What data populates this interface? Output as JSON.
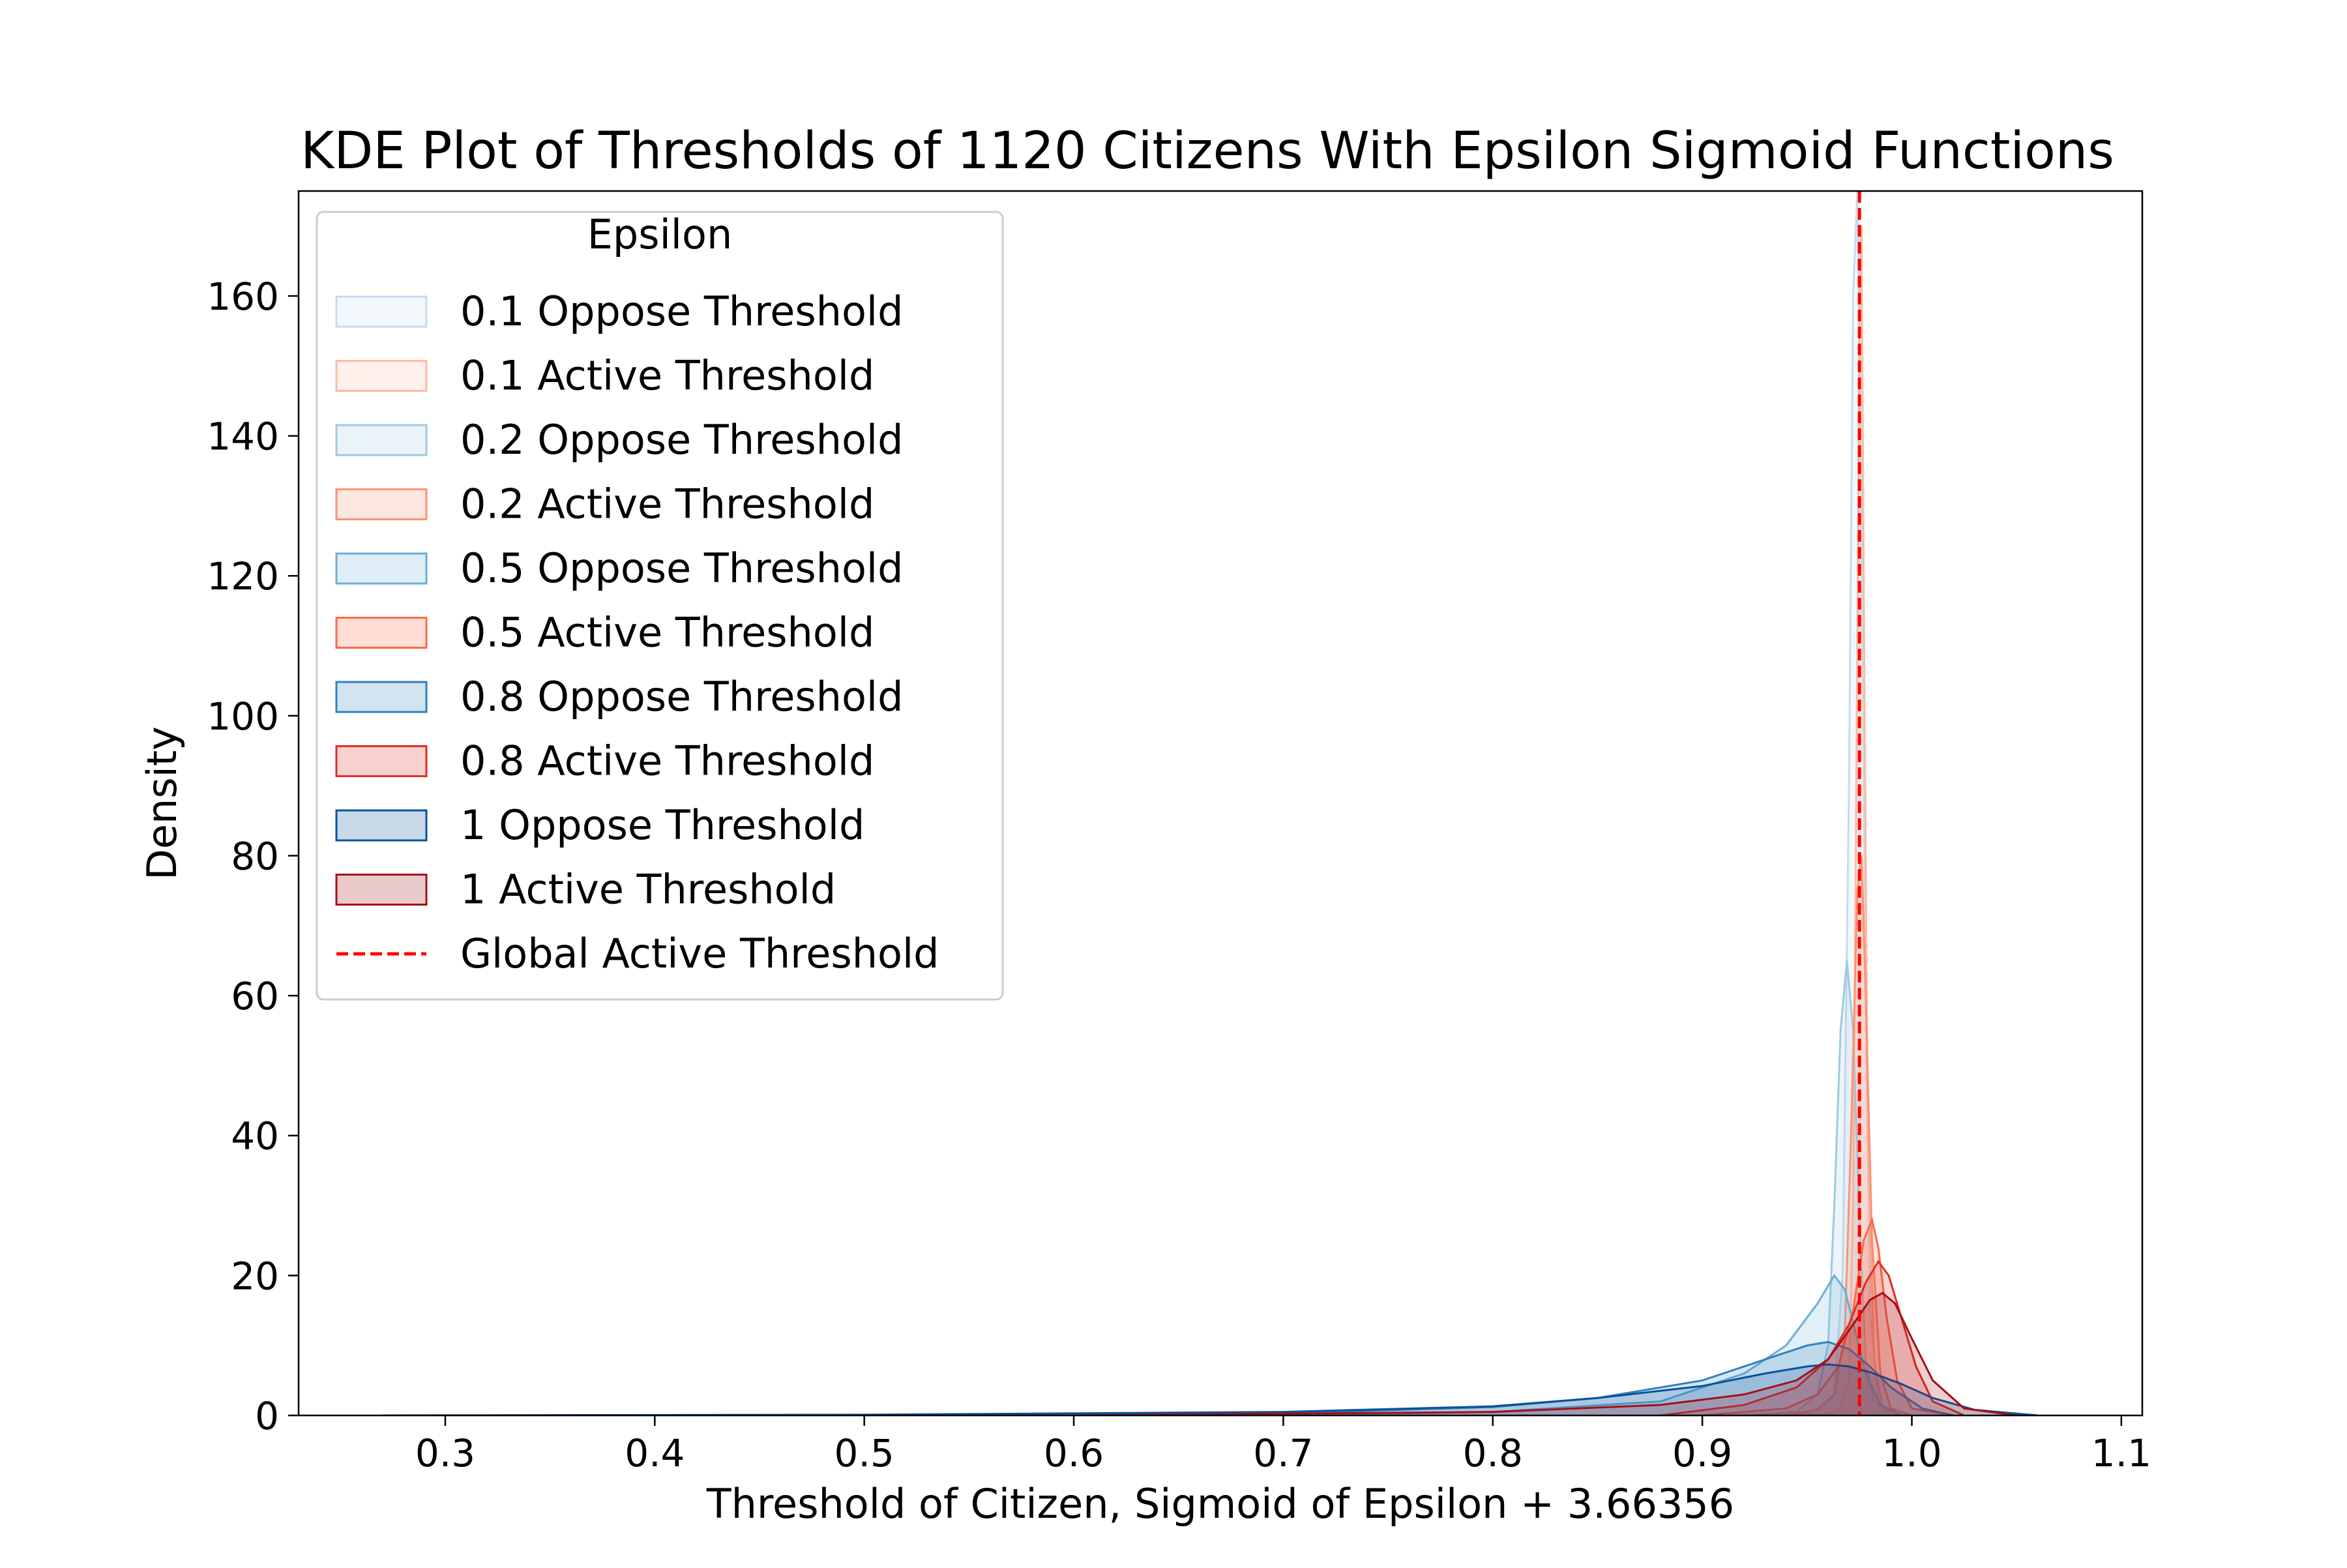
{
  "chart_data": {
    "type": "area",
    "title": "KDE Plot of Thresholds of 1120 Citizens With Epsilon Sigmoid Functions",
    "xlabel": "Threshold of Citizen, Sigmoid of Epsilon + 3.66356",
    "ylabel": "Density",
    "xlim": [
      0.23,
      1.11
    ],
    "ylim": [
      0,
      175
    ],
    "xticks": [
      0.3,
      0.4,
      0.5,
      0.6,
      0.7,
      0.8,
      0.9,
      1.0,
      1.1
    ],
    "xtick_labels": [
      "0.3",
      "0.4",
      "0.5",
      "0.6",
      "0.7",
      "0.8",
      "0.9",
      "1.0",
      "1.1"
    ],
    "yticks": [
      0,
      20,
      40,
      60,
      80,
      100,
      120,
      140,
      160
    ],
    "ytick_labels": [
      "0",
      "20",
      "40",
      "60",
      "80",
      "100",
      "120",
      "140",
      "160"
    ],
    "grid": false,
    "legend": {
      "title": "Epsilon",
      "placement": "upper-left"
    },
    "global_active_threshold": {
      "name": "Global Active Threshold",
      "x": 0.975,
      "color": "#ff0000",
      "style": "dashed"
    },
    "series": [
      {
        "name": "0.1 Oppose Threshold",
        "color": "#c6dbef",
        "fill_alpha": 0.2,
        "x": [
          0.93,
          0.955,
          0.963,
          0.967,
          0.97,
          0.972,
          0.974,
          0.976,
          0.978,
          0.98,
          0.984,
          0.99
        ],
        "y": [
          0,
          0.3,
          3,
          20,
          90,
          160,
          175,
          130,
          60,
          15,
          2,
          0
        ]
      },
      {
        "name": "0.1 Active Threshold",
        "color": "#fcbba1",
        "fill_alpha": 0.2,
        "x": [
          0.955,
          0.965,
          0.97,
          0.972,
          0.974,
          0.975,
          0.976,
          0.977,
          0.979,
          0.982,
          0.986,
          0.995
        ],
        "y": [
          0,
          0.5,
          5,
          30,
          110,
          160,
          170,
          120,
          40,
          8,
          1,
          0
        ]
      },
      {
        "name": "0.2 Oppose Threshold",
        "color": "#9ecae1",
        "fill_alpha": 0.2,
        "x": [
          0.92,
          0.945,
          0.955,
          0.96,
          0.963,
          0.966,
          0.969,
          0.972,
          0.975,
          0.978,
          0.982,
          0.99
        ],
        "y": [
          0,
          0.5,
          3,
          10,
          30,
          55,
          65,
          55,
          28,
          8,
          2,
          0
        ]
      },
      {
        "name": "0.2 Active Threshold",
        "color": "#fc9272",
        "fill_alpha": 0.2,
        "x": [
          0.94,
          0.955,
          0.963,
          0.968,
          0.971,
          0.974,
          0.976,
          0.978,
          0.981,
          0.985,
          0.99,
          1.0
        ],
        "y": [
          0,
          0.8,
          3,
          12,
          40,
          75,
          80,
          60,
          25,
          6,
          1,
          0
        ]
      },
      {
        "name": "0.5 Oppose Threshold",
        "color": "#6baed6",
        "fill_alpha": 0.2,
        "x": [
          0.7,
          0.8,
          0.88,
          0.92,
          0.94,
          0.955,
          0.963,
          0.968,
          0.973,
          0.978,
          0.985,
          0.995
        ],
        "y": [
          0,
          0.5,
          2,
          6,
          10,
          16,
          20,
          18,
          12,
          6,
          1.5,
          0
        ]
      },
      {
        "name": "0.5 Active Threshold",
        "color": "#fb6a4a",
        "fill_alpha": 0.2,
        "x": [
          0.9,
          0.94,
          0.955,
          0.965,
          0.972,
          0.977,
          0.981,
          0.984,
          0.988,
          0.993,
          1.0,
          1.02
        ],
        "y": [
          0,
          1,
          3,
          7,
          15,
          25,
          28,
          24,
          14,
          5,
          1,
          0
        ]
      },
      {
        "name": "0.8 Oppose Threshold",
        "color": "#3182bd",
        "fill_alpha": 0.2,
        "x": [
          0.55,
          0.7,
          0.8,
          0.85,
          0.9,
          0.93,
          0.95,
          0.96,
          0.97,
          0.98,
          0.99,
          1.005,
          1.02
        ],
        "y": [
          0,
          0.3,
          1.2,
          2.5,
          5,
          8,
          10,
          10.5,
          9.5,
          7,
          4,
          1,
          0
        ]
      },
      {
        "name": "0.8 Active Threshold",
        "color": "#de2d26",
        "fill_alpha": 0.2,
        "x": [
          0.88,
          0.92,
          0.945,
          0.96,
          0.97,
          0.978,
          0.984,
          0.989,
          0.995,
          1.002,
          1.01,
          1.025
        ],
        "y": [
          0,
          1.5,
          4,
          8,
          13,
          19,
          22,
          20,
          14,
          7,
          2,
          0
        ]
      },
      {
        "name": "1 Oppose Threshold",
        "color": "#08519c",
        "fill_alpha": 0.2,
        "x": [
          0.27,
          0.5,
          0.7,
          0.8,
          0.85,
          0.9,
          0.93,
          0.95,
          0.96,
          0.97,
          0.98,
          0.995,
          1.01,
          1.03,
          1.06
        ],
        "y": [
          0,
          0.1,
          0.5,
          1.3,
          2.5,
          4.2,
          6,
          7,
          7.3,
          7,
          6.2,
          4.5,
          2.5,
          0.8,
          0
        ]
      },
      {
        "name": "1 Active Threshold",
        "color": "#a50f15",
        "fill_alpha": 0.2,
        "x": [
          0.6,
          0.8,
          0.88,
          0.92,
          0.945,
          0.96,
          0.972,
          0.98,
          0.986,
          0.992,
          1.0,
          1.01,
          1.025,
          1.05
        ],
        "y": [
          0,
          0.5,
          1.5,
          3,
          5,
          8,
          13,
          16.5,
          17.5,
          16,
          11,
          5,
          1,
          0
        ]
      }
    ]
  }
}
